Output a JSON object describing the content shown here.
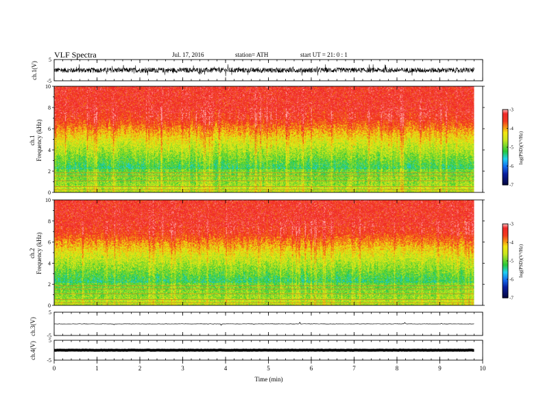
{
  "header": {
    "title": "VLF  Spectra",
    "date": "Jul.  17,  2016",
    "station": "station= ATH",
    "start": "start  UT  =   21: 0  : 1"
  },
  "colors": {
    "spec_low": "#0a1f9e",
    "spec_mid_cyan": "#1fd0f0",
    "spec_mid_green": "#28c83a",
    "spec_yellow": "#f2e60f",
    "spec_high": "#f23a1e",
    "spec_top": "#ff8f80",
    "trace": "#000000"
  },
  "chart_data": [
    {
      "type": "line",
      "name": "ch1-waveform",
      "ylabel": "ch.1(V)",
      "ylim": [
        -5,
        5
      ],
      "yticks": [
        5,
        -5
      ],
      "x_range_min": [
        0,
        9.8
      ],
      "description_values": {
        "mean_V": 0.0,
        "amplitude_V": 1.2
      }
    },
    {
      "type": "heatmap",
      "name": "ch1-spectrogram",
      "ylabel": "ch.1\nFrequency (kHz)",
      "ylabel_top": "ch.1",
      "ylabel_bottom": "Frequency  (kHz)",
      "ylim_kHz": [
        0,
        10
      ],
      "yticks": [
        "10",
        "8",
        "6",
        "4",
        "2",
        "0"
      ],
      "colorbar": {
        "label": "log(PSD)(V²/Hz)",
        "range": [
          -7,
          -3
        ],
        "ticks": [
          "-3",
          "-4",
          "-5",
          "-6",
          "-7"
        ]
      }
    },
    {
      "type": "heatmap",
      "name": "ch2-spectrogram",
      "ylabel_top": "ch.2",
      "ylabel_bottom": "Frequency  (kHz)",
      "ylim_kHz": [
        0,
        10
      ],
      "yticks": [
        "10",
        "8",
        "6",
        "4",
        "2",
        "0"
      ],
      "colorbar": {
        "label": "log(PSD)(V²/Hz)",
        "range": [
          -7,
          -3
        ],
        "ticks": [
          "-3",
          "-4",
          "-5",
          "-6",
          "-7"
        ]
      }
    },
    {
      "type": "line",
      "name": "ch3-waveform",
      "ylabel": "ch.3(V)",
      "ylim": [
        -5,
        5
      ],
      "yticks": [
        "5",
        "-5"
      ],
      "level_V": 0.0
    },
    {
      "type": "line",
      "name": "ch4-waveform",
      "ylabel": "ch.4(V)",
      "ylim": [
        -5,
        5
      ],
      "yticks": [
        "5",
        "-5"
      ],
      "level_V": 0.0
    }
  ],
  "xaxis": {
    "label": "Time  (min)",
    "range": [
      0,
      10
    ],
    "data_end_min": 9.8,
    "ticks": [
      "0",
      "1",
      "2",
      "3",
      "4",
      "5",
      "6",
      "7",
      "8",
      "9",
      "10"
    ]
  }
}
